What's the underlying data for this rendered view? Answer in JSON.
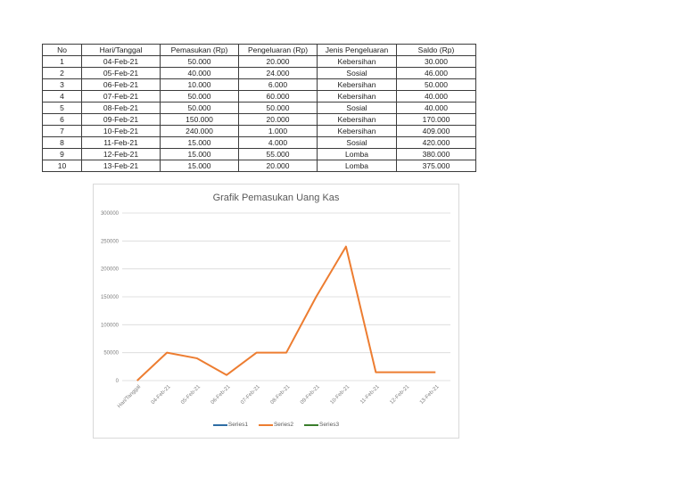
{
  "table": {
    "headers": [
      "No",
      "Hari/Tanggal",
      "Pemasukan (Rp)",
      "Pengeluaran (Rp)",
      "Jenis Pengeluaran",
      "Saldo (Rp)"
    ],
    "rows": [
      [
        "1",
        "04-Feb-21",
        "50.000",
        "20.000",
        "Kebersihan",
        "30.000"
      ],
      [
        "2",
        "05-Feb-21",
        "40.000",
        "24.000",
        "Sosial",
        "46.000"
      ],
      [
        "3",
        "06-Feb-21",
        "10.000",
        "6.000",
        "Kebersihan",
        "50.000"
      ],
      [
        "4",
        "07-Feb-21",
        "50.000",
        "60.000",
        "Kebersihan",
        "40.000"
      ],
      [
        "5",
        "08-Feb-21",
        "50.000",
        "50.000",
        "Sosial",
        "40.000"
      ],
      [
        "6",
        "09-Feb-21",
        "150.000",
        "20.000",
        "Kebersihan",
        "170.000"
      ],
      [
        "7",
        "10-Feb-21",
        "240.000",
        "1.000",
        "Kebersihan",
        "409.000"
      ],
      [
        "8",
        "11-Feb-21",
        "15.000",
        "4.000",
        "Sosial",
        "420.000"
      ],
      [
        "9",
        "12-Feb-21",
        "15.000",
        "55.000",
        "Lomba",
        "380.000"
      ],
      [
        "10",
        "13-Feb-21",
        "15.000",
        "20.000",
        "Lomba",
        "375.000"
      ]
    ]
  },
  "chart": {
    "title": "Grafik Pemasukan Uang Kas",
    "legend": [
      {
        "label": "Series1",
        "color": "#2e6da4"
      },
      {
        "label": "Series2",
        "color": "#ed7d31"
      },
      {
        "label": "Series3",
        "color": "#3a7d2c"
      }
    ]
  },
  "chart_data": {
    "type": "line",
    "title": "Grafik Pemasukan Uang Kas",
    "categories": [
      "Hari/Tanggal",
      "04-Feb-21",
      "05-Feb-21",
      "06-Feb-21",
      "07-Feb-21",
      "08-Feb-21",
      "09-Feb-21",
      "10-Feb-21",
      "11-Feb-21",
      "12-Feb-21",
      "13-Feb-21"
    ],
    "series": [
      {
        "name": "Series1",
        "color": "#2e6da4",
        "values": []
      },
      {
        "name": "Series2",
        "color": "#ed7d31",
        "values": [
          0,
          50000,
          40000,
          10000,
          50000,
          50000,
          150000,
          240000,
          15000,
          15000,
          15000
        ]
      },
      {
        "name": "Series3",
        "color": "#3a7d2c",
        "values": []
      }
    ],
    "yticks": [
      0,
      50000,
      100000,
      150000,
      200000,
      250000,
      300000
    ],
    "ylim": [
      0,
      300000
    ],
    "xlabel": "",
    "ylabel": "",
    "grid": true,
    "legend_position": "bottom"
  }
}
